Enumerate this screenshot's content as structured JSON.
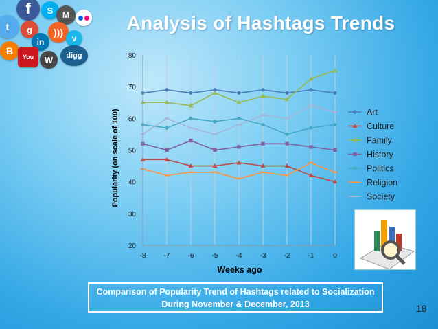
{
  "slide": {
    "title": "Analysis of Hashtags Trends",
    "caption_line1": "Comparison of Popularity Trend of Hashtags related to Socialization",
    "caption_line2": "During November & December, 2013",
    "page_number": "18"
  },
  "social_icons": [
    "facebook-icon",
    "twitter-icon",
    "skype-icon",
    "flickr-icon",
    "myspace-icon",
    "google-icon",
    "linkedin-icon",
    "rss-icon",
    "youtube-icon",
    "wordpress-icon",
    "digg-icon",
    "blogger-icon",
    "vimeo-icon"
  ],
  "chart_data": {
    "type": "line",
    "xlabel": "Weeks ago",
    "ylabel": "Popularity (on scale of 100)",
    "x": [
      -8,
      -7,
      -6,
      -5,
      -4,
      -3,
      -2,
      -1,
      0
    ],
    "xticks": [
      "-8",
      "-7",
      "-6",
      "-5",
      "-4",
      "-3",
      "-2",
      "-1",
      "0"
    ],
    "yticks": [
      "20",
      "30",
      "40",
      "50",
      "60",
      "70",
      "80"
    ],
    "ylim": [
      20,
      80
    ],
    "grid": "vertical",
    "legend": "right",
    "series": [
      {
        "name": "Art",
        "color": "#4a7ebb",
        "marker": "circle",
        "values": [
          68,
          69,
          68,
          69,
          68,
          69,
          68,
          69,
          68
        ]
      },
      {
        "name": "Culture",
        "color": "#be4b48",
        "marker": "triangle",
        "values": [
          47,
          47,
          45,
          45,
          46,
          45,
          45,
          42,
          40
        ]
      },
      {
        "name": "Family",
        "color": "#98b954",
        "marker": "triangle",
        "values": [
          65,
          65,
          64,
          68,
          65,
          67,
          66,
          72.5,
          75
        ]
      },
      {
        "name": "History",
        "color": "#7d60a0",
        "marker": "square",
        "values": [
          52,
          50,
          53,
          50,
          51,
          52,
          52,
          51,
          50
        ]
      },
      {
        "name": "Politics",
        "color": "#46aac5",
        "marker": "circle",
        "values": [
          58,
          57,
          60,
          59,
          60,
          58,
          55,
          57,
          58
        ]
      },
      {
        "name": "Religion",
        "color": "#f79646",
        "marker": "dash",
        "values": [
          44,
          42,
          43,
          43,
          41,
          43,
          42,
          46,
          43
        ]
      },
      {
        "name": "Society",
        "color": "#a5b6d8",
        "marker": "dash",
        "values": [
          55,
          60,
          57,
          55,
          58,
          61,
          60,
          64,
          62
        ]
      }
    ]
  }
}
